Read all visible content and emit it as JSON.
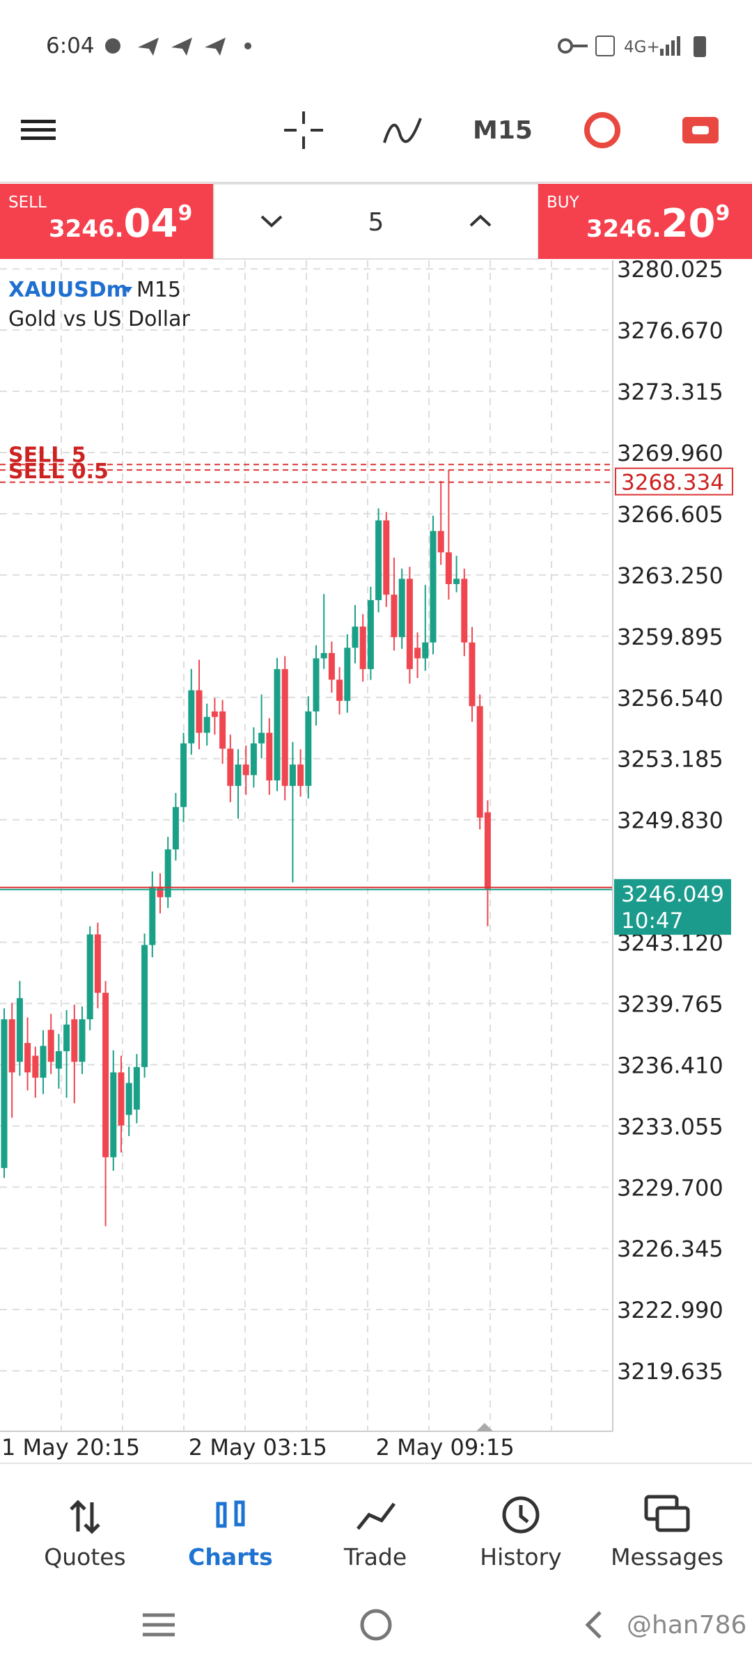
{
  "status_bar": {
    "time": "6:04",
    "network": "4G+"
  },
  "toolbar": {
    "timeframe": "M15"
  },
  "trade_panel": {
    "sell_label": "SELL",
    "sell_prefix": "3246.",
    "sell_big": "04",
    "sell_sup": "9",
    "volume": "5",
    "buy_label": "BUY",
    "buy_prefix": "3246.",
    "buy_big": "20",
    "buy_sup": "9"
  },
  "chart_data": {
    "type": "candlestick",
    "symbol": "XAUUSDm",
    "timeframe": "M15",
    "subtitle": "Gold vs US Dollar",
    "up_color": "#1aa087",
    "down_color": "#ef4650",
    "ylim": [
      3216.32,
      3280.49
    ],
    "yticks": [
      3280.025,
      {
        "value": 3276.67,
        "label": "3276.670"
      },
      3273.315,
      {
        "value": 3269.96,
        "label": "3269.960"
      },
      3266.605,
      {
        "value": 3263.25,
        "label": "3263.250"
      },
      3259.895,
      {
        "value": 3256.54,
        "label": "3256.540"
      },
      3253.185,
      {
        "value": 3249.83,
        "label": "3249.830"
      },
      {
        "value": 3243.12,
        "label": "3243.120"
      },
      3239.765,
      {
        "value": 3236.41,
        "label": "3236.410"
      },
      3233.055,
      {
        "value": 3229.7,
        "label": "3229.700"
      },
      3226.345,
      {
        "value": 3222.99,
        "label": "3222.990"
      },
      3219.635
    ],
    "grid": true,
    "categories": [
      "1 May 20:15",
      null,
      null,
      null,
      null,
      null,
      null,
      null,
      null,
      null,
      null,
      null,
      null,
      null,
      null,
      null,
      null,
      null,
      null,
      null,
      null,
      null,
      null,
      null,
      "2 May 03:15",
      null,
      null,
      null,
      null,
      null,
      null,
      null,
      null,
      null,
      null,
      null,
      null,
      null,
      null,
      null,
      null,
      null,
      null,
      null,
      null,
      null,
      null,
      null,
      "2 May 09:15",
      null,
      null,
      null,
      null,
      null,
      null,
      null,
      null,
      null,
      null,
      null,
      null,
      null,
      null
    ],
    "candles": [
      [
        3230.75,
        3239.5,
        3230.2,
        3238.9
      ],
      [
        3238.9,
        3239.8,
        3233.5,
        3235.99
      ],
      [
        3236.57,
        3241.0,
        3235.8,
        3240.06
      ],
      [
        3237.6,
        3239.0,
        3235.0,
        3235.99
      ],
      [
        3236.9,
        3237.4,
        3234.6,
        3235.7
      ],
      [
        3235.7,
        3238.3,
        3234.8,
        3237.44
      ],
      [
        3238.32,
        3239.2,
        3235.9,
        3236.57
      ],
      [
        3236.2,
        3238.1,
        3235.1,
        3237.15
      ],
      [
        3237.15,
        3239.4,
        3234.6,
        3238.61
      ],
      [
        3238.9,
        3239.7,
        3234.3,
        3236.57
      ],
      [
        3236.57,
        3239.6,
        3235.9,
        3238.9
      ],
      [
        3238.9,
        3244.0,
        3238.3,
        3243.55
      ],
      [
        3243.55,
        3244.2,
        3239.5,
        3240.35
      ],
      [
        3240.35,
        3241.0,
        3227.56,
        3231.34
      ],
      [
        3231.34,
        3237.2,
        3230.6,
        3235.99
      ],
      [
        3235.99,
        3236.9,
        3231.6,
        3233.08
      ],
      [
        3233.66,
        3236.3,
        3232.5,
        3235.41
      ],
      [
        3233.95,
        3237.0,
        3233.2,
        3236.28
      ],
      [
        3236.28,
        3243.6,
        3235.7,
        3242.97
      ],
      [
        3242.97,
        3247.0,
        3242.3,
        3246.17
      ],
      [
        3246.17,
        3246.9,
        3244.7,
        3245.59
      ],
      [
        3245.59,
        3248.9,
        3245.0,
        3248.21
      ],
      [
        3248.21,
        3251.3,
        3247.6,
        3250.53
      ],
      [
        3250.53,
        3254.6,
        3249.7,
        3254.02
      ],
      [
        3254.02,
        3258.1,
        3253.4,
        3256.93
      ],
      [
        3256.93,
        3258.6,
        3253.7,
        3254.6
      ],
      [
        3254.6,
        3256.2,
        3253.9,
        3255.47
      ],
      [
        3255.77,
        3256.5,
        3254.5,
        3255.47
      ],
      [
        3255.77,
        3256.4,
        3252.9,
        3253.73
      ],
      [
        3253.73,
        3254.5,
        3250.8,
        3251.69
      ],
      [
        3251.69,
        3253.7,
        3249.9,
        3252.86
      ],
      [
        3252.86,
        3253.9,
        3251.2,
        3252.28
      ],
      [
        3252.28,
        3254.9,
        3251.6,
        3254.02
      ],
      [
        3254.02,
        3256.7,
        3253.2,
        3254.6
      ],
      [
        3254.6,
        3255.4,
        3251.2,
        3251.99
      ],
      [
        3251.99,
        3258.7,
        3251.4,
        3258.09
      ],
      [
        3258.09,
        3258.8,
        3250.9,
        3251.69
      ],
      [
        3251.69,
        3254.1,
        3246.4,
        3252.86
      ],
      [
        3252.86,
        3253.7,
        3251.1,
        3251.69
      ],
      [
        3251.69,
        3256.6,
        3251.0,
        3255.77
      ],
      [
        3255.77,
        3259.4,
        3255.0,
        3258.68
      ],
      [
        3258.68,
        3262.2,
        3258.1,
        3258.97
      ],
      [
        3258.97,
        3259.6,
        3256.8,
        3257.51
      ],
      [
        3257.51,
        3258.2,
        3255.6,
        3256.35
      ],
      [
        3256.35,
        3260.0,
        3255.7,
        3259.26
      ],
      [
        3259.26,
        3261.6,
        3258.4,
        3260.42
      ],
      [
        3260.42,
        3261.1,
        3257.4,
        3258.09
      ],
      [
        3258.09,
        3262.6,
        3257.5,
        3261.87
      ],
      [
        3261.87,
        3266.9,
        3261.2,
        3266.24
      ],
      [
        3266.24,
        3266.7,
        3261.5,
        3262.17
      ],
      [
        3262.17,
        3264.2,
        3259.1,
        3259.84
      ],
      [
        3259.84,
        3263.6,
        3259.2,
        3263.04
      ],
      [
        3263.04,
        3263.7,
        3257.3,
        3258.09
      ],
      [
        3259.26,
        3260.1,
        3257.6,
        3258.68
      ],
      [
        3258.68,
        3262.7,
        3258.0,
        3259.55
      ],
      [
        3259.55,
        3266.5,
        3258.9,
        3265.66
      ],
      [
        3265.66,
        3268.4,
        3263.8,
        3264.49
      ],
      [
        3264.49,
        3269.0,
        3261.9,
        3262.75
      ],
      [
        3262.75,
        3264.3,
        3262.3,
        3263.04
      ],
      [
        3263.04,
        3263.6,
        3258.8,
        3259.55
      ],
      [
        3259.55,
        3260.4,
        3255.2,
        3256.06
      ],
      [
        3256.06,
        3256.7,
        3249.3,
        3249.95
      ],
      [
        3250.24,
        3250.9,
        3244.0,
        3246.049
      ]
    ],
    "order_lines": [
      {
        "label": "SELL 5",
        "value": 3269.3
      },
      {
        "label": "SELL 0.5",
        "value": 3269.0
      }
    ],
    "position_price": 3268.334,
    "bid": 3246.049,
    "countdown": "10:47"
  },
  "nav": [
    "Quotes",
    "Charts",
    "Trade",
    "History",
    "Messages"
  ],
  "watermark": "@han786"
}
